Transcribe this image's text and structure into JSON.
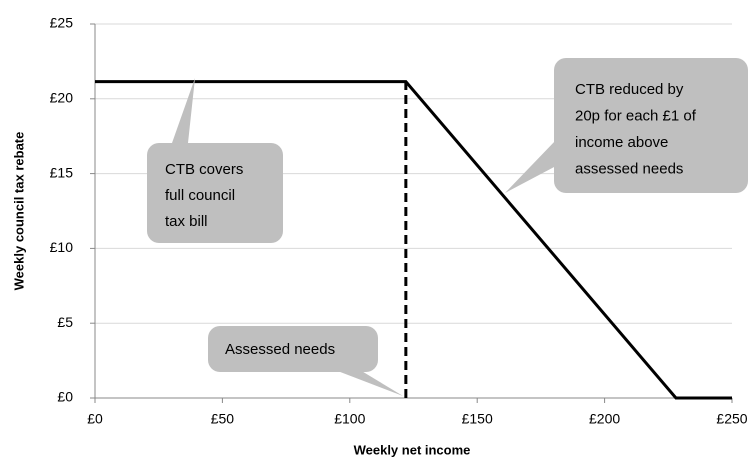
{
  "chart_data": {
    "type": "line",
    "xlabel": "Weekly net income",
    "ylabel": "Weekly council tax rebate",
    "series": [
      {
        "x": [
          0,
          122,
          228,
          250
        ],
        "values": [
          21.15,
          21.15,
          0,
          0
        ],
        "color": "#000000"
      }
    ],
    "vline_x": 122,
    "xlim": [
      0,
      250
    ],
    "xticks": [
      {
        "value": 0,
        "label": "£0"
      },
      {
        "value": 50,
        "label": "£50"
      },
      {
        "value": 100,
        "label": "£100"
      },
      {
        "value": 150,
        "label": "£150"
      },
      {
        "value": 200,
        "label": "£200"
      },
      {
        "value": 250,
        "label": "£250"
      }
    ],
    "ylim": [
      0,
      25
    ],
    "yticks": [
      {
        "value": 0,
        "label": "£0"
      },
      {
        "value": 5,
        "label": "£5"
      },
      {
        "value": 10,
        "label": "£10"
      },
      {
        "value": 15,
        "label": "£15"
      },
      {
        "value": 20,
        "label": "£20"
      },
      {
        "value": 25,
        "label": "£25"
      }
    ],
    "grid": true,
    "annotations": [
      {
        "lines": [
          "CTB covers",
          "full council",
          "tax bill"
        ]
      },
      {
        "lines": [
          "CTB reduced by",
          "20p for each £1 of",
          "income above",
          "assessed needs"
        ]
      },
      {
        "lines": [
          "Assessed needs"
        ]
      }
    ]
  }
}
